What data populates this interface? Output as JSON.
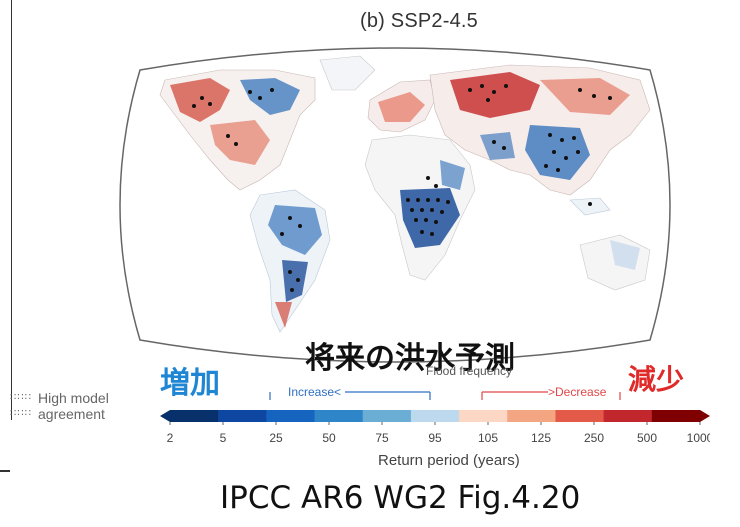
{
  "panel_title": "(b) SSP2-4.5",
  "increase_jp": "増加",
  "title_jp": "将来の洪水予測",
  "decrease_jp": "減少",
  "flood_frequency_label": "Flood frequency",
  "increase_label": "Increase<",
  "decrease_label": ">Decrease",
  "agreement_line1": "High model",
  "agreement_line2": "agreement",
  "return_period_label": "Return period (years)",
  "caption": "IPCC AR6 WG2 Fig.4.20",
  "colorbar": {
    "ticks": [
      "2",
      "5",
      "25",
      "50",
      "75",
      "95",
      "105",
      "125",
      "250",
      "500",
      "1000"
    ],
    "colors": [
      "#08306b",
      "#0d47a1",
      "#1565c0",
      "#2e86c9",
      "#6aaed6",
      "#bcd9ee",
      "#fcd7c4",
      "#f4a582",
      "#e45a48",
      "#c1272d",
      "#7f0000"
    ],
    "increase_color": "#2f6fc2",
    "decrease_color": "#e0484a"
  },
  "map_colors": {
    "increase": "#2b6cb8",
    "decrease": "#c62828",
    "neutral": "#ffffff",
    "ocean": "#ffffff"
  }
}
